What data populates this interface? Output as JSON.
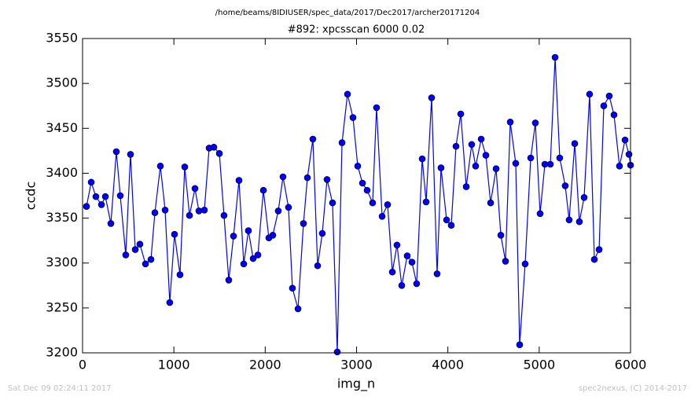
{
  "suptitle": "/home/beams/8IDIUSER/spec_data/2017/Dec2017/archer20171204",
  "footer_left": "Sat Dec 09 02:24:11 2017",
  "footer_right": "spec2nexus, (C) 2014-2017",
  "chart_data": {
    "type": "line",
    "title": "#892: xpcsscan 6000 0.02",
    "xlabel": "img_n",
    "ylabel": "ccdc",
    "xlim": [
      0,
      6000
    ],
    "ylim": [
      3200,
      3550
    ],
    "xticks": [
      0,
      1000,
      2000,
      3000,
      4000,
      5000,
      6000
    ],
    "yticks": [
      3200,
      3250,
      3300,
      3350,
      3400,
      3450,
      3500,
      3550
    ],
    "x": [
      43,
      95,
      146,
      207,
      250,
      310,
      370,
      413,
      473,
      525,
      577,
      628,
      689,
      749,
      792,
      852,
      904,
      955,
      1007,
      1067,
      1119,
      1171,
      1231,
      1274,
      1334,
      1386,
      1438,
      1498,
      1549,
      1601,
      1653,
      1713,
      1765,
      1816,
      1868,
      1920,
      1980,
      2040,
      2083,
      2143,
      2195,
      2255,
      2298,
      2359,
      2419,
      2462,
      2522,
      2574,
      2625,
      2677,
      2737,
      2789,
      2841,
      2901,
      2961,
      3013,
      3065,
      3116,
      3176,
      3219,
      3280,
      3340,
      3392,
      3443,
      3495,
      3555,
      3607,
      3658,
      3719,
      3762,
      3822,
      3882,
      3925,
      3986,
      4037,
      4089,
      4141,
      4201,
      4261,
      4304,
      4365,
      4416,
      4468,
      4528,
      4580,
      4631,
      4683,
      4743,
      4786,
      4846,
      4907,
      4958,
      5010,
      5062,
      5122,
      5174,
      5225,
      5285,
      5328,
      5389,
      5440,
      5492,
      5552,
      5604,
      5656,
      5707,
      5767,
      5819,
      5879,
      5940,
      5983,
      6000
    ],
    "series": [
      {
        "name": "ccdc",
        "color": "#0000ff",
        "values": [
          3363,
          3390,
          3374,
          3365,
          3374,
          3344,
          3424,
          3375,
          3309,
          3421,
          3315,
          3321,
          3299,
          3304,
          3356,
          3408,
          3359,
          3256,
          3332,
          3287,
          3407,
          3353,
          3383,
          3358,
          3359,
          3428,
          3429,
          3422,
          3353,
          3281,
          3330,
          3392,
          3299,
          3336,
          3305,
          3309,
          3381,
          3328,
          3331,
          3358,
          3396,
          3362,
          3272,
          3249,
          3344,
          3395,
          3438,
          3297,
          3333,
          3393,
          3367,
          3201,
          3434,
          3488,
          3462,
          3408,
          3389,
          3381,
          3367,
          3473,
          3352,
          3365,
          3290,
          3320,
          3275,
          3308,
          3301,
          3277,
          3416,
          3368,
          3484,
          3288,
          3406,
          3348,
          3342,
          3430,
          3466,
          3385,
          3432,
          3408,
          3438,
          3420,
          3367,
          3405,
          3331,
          3302,
          3457,
          3411,
          3209,
          3299,
          3417,
          3456,
          3355,
          3410,
          3410,
          3529,
          3417,
          3386,
          3348,
          3433,
          3346,
          3373,
          3488,
          3304,
          3315,
          3475,
          3486,
          3465,
          3408,
          3437,
          3421,
          3409
        ]
      }
    ]
  }
}
